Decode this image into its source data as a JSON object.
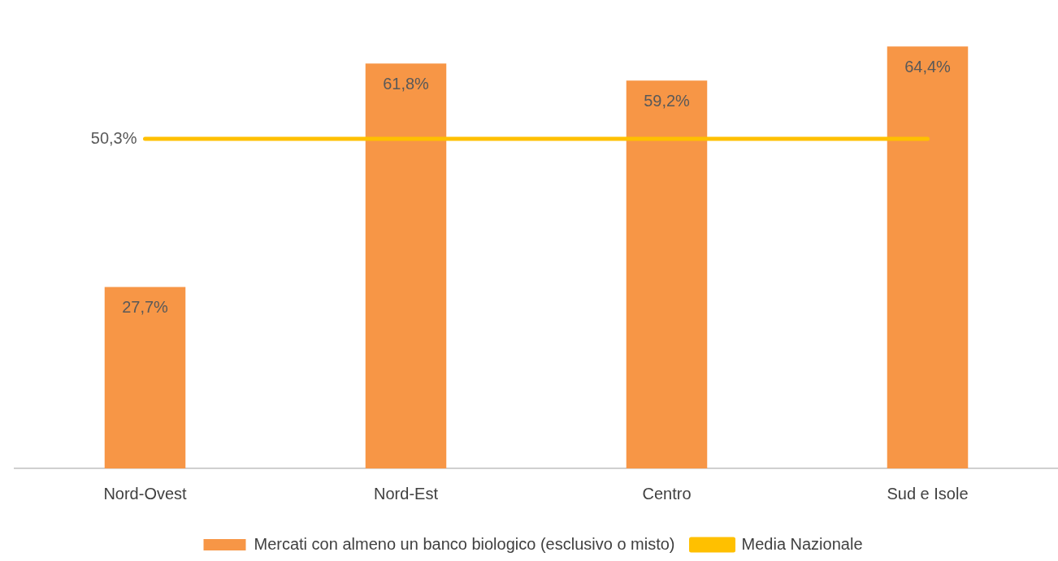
{
  "chart_data": {
    "type": "bar",
    "categories": [
      "Nord-Ovest",
      "Nord-Est",
      "Centro",
      "Sud e Isole"
    ],
    "series": [
      {
        "name": "Mercati con almeno un banco biologico (esclusivo o misto)",
        "color": "#f79646",
        "values": [
          27.7,
          61.8,
          59.2,
          64.4
        ],
        "value_labels": [
          "27,7%",
          "61,8%",
          "59,2%",
          "64,4%"
        ]
      },
      {
        "name": "Media Nazionale",
        "type": "line",
        "color": "#ffc000",
        "values": [
          50.3,
          50.3,
          50.3,
          50.3
        ],
        "value_labels": [
          "50,3%",
          null,
          null,
          null
        ]
      }
    ],
    "grid": false,
    "legend": "bottom",
    "marker": "none",
    "line_style": "solid"
  }
}
